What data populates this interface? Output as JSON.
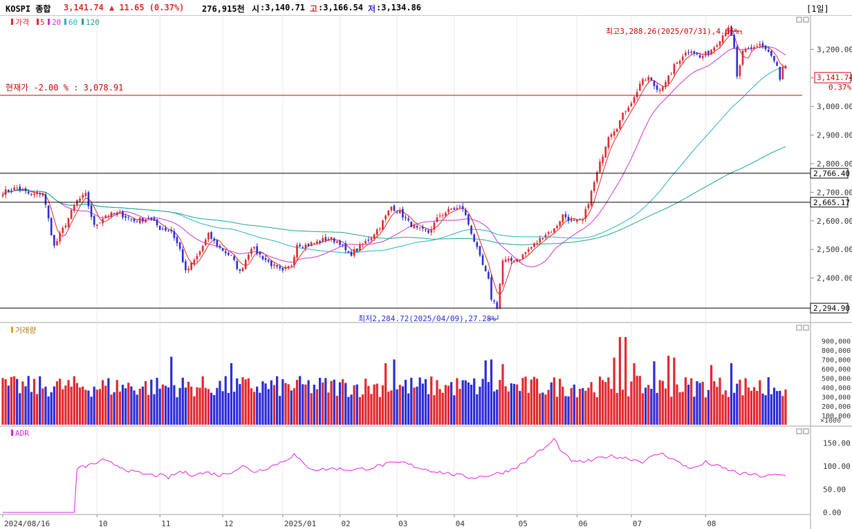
{
  "header": {
    "name": "KOSPI 종합",
    "price": "3,141.74",
    "change": "▲ 11.65 (0.37%)",
    "volume": "276,915천",
    "open_label": "시",
    "open": ":3,140.71",
    "high_label": "고",
    "high": ":3,166.54",
    "low_label": "저",
    "low": ":3,134.86",
    "period": "[1일]"
  },
  "legend": {
    "price": "가격",
    "ma5": "5",
    "ma20": "20",
    "ma60": "60",
    "ma120": "120",
    "volume": "거래량",
    "adr": "ADR"
  },
  "colors": {
    "up": "#e0282e",
    "down": "#2b2bd6",
    "ma5": "#d82828",
    "ma20": "#cc33cc",
    "ma60": "#20b0c8",
    "ma120": "#1aa58a",
    "adr": "#dd22dd",
    "hline": "#000000",
    "current": "#cc0000"
  },
  "annotations": {
    "max": "최고3,288.26(2025/07/31),4.66%",
    "min": "최저2,284.72(2025/04/09),27.28%",
    "current": "현재가 -2.00 % : 3,078.91",
    "last_price": "3,141.74",
    "last_pct": "0.37%"
  },
  "hlines": [
    {
      "label": "2,766.40",
      "value": 2766.4
    },
    {
      "label": "2,665.17",
      "value": 2665.17
    },
    {
      "label": "2,294.90",
      "value": 2294.9
    }
  ],
  "chart_data": [
    {
      "type": "candlestick",
      "title": "KOSPI 종합",
      "ylim": [
        2270,
        3310
      ],
      "yticks": [
        2400,
        2500,
        2600,
        2700,
        2800,
        2900,
        3000,
        3100,
        3200
      ],
      "ytick_labels": [
        "2,400.00",
        "2,500.00",
        "2,600.00",
        "2,700.00",
        "2,800.00",
        "2,900.00",
        "3,000.00",
        "3,100.00",
        "3,200.00"
      ],
      "x_labels": [
        "2024/08/16",
        "10",
        "11",
        "12",
        "2025/01",
        "02",
        "03",
        "04",
        "05",
        "06",
        "07",
        "08"
      ],
      "anchors": [
        [
          0,
          2700
        ],
        [
          5,
          2715
        ],
        [
          10,
          2690
        ],
        [
          14,
          2700
        ],
        [
          18,
          2510
        ],
        [
          22,
          2590
        ],
        [
          26,
          2670
        ],
        [
          29,
          2690
        ],
        [
          32,
          2580
        ],
        [
          36,
          2620
        ],
        [
          41,
          2625
        ],
        [
          46,
          2600
        ],
        [
          51,
          2610
        ],
        [
          55,
          2575
        ],
        [
          59,
          2565
        ],
        [
          62,
          2500
        ],
        [
          64,
          2420
        ],
        [
          68,
          2475
        ],
        [
          72,
          2550
        ],
        [
          76,
          2505
        ],
        [
          80,
          2475
        ],
        [
          83,
          2420
        ],
        [
          87,
          2510
        ],
        [
          90,
          2480
        ],
        [
          95,
          2440
        ],
        [
          98,
          2420
        ],
        [
          101,
          2445
        ],
        [
          103,
          2520
        ],
        [
          106,
          2515
        ],
        [
          110,
          2525
        ],
        [
          114,
          2540
        ],
        [
          118,
          2525
        ],
        [
          121,
          2480
        ],
        [
          124,
          2500
        ],
        [
          128,
          2535
        ],
        [
          132,
          2580
        ],
        [
          136,
          2650
        ],
        [
          139,
          2630
        ],
        [
          142,
          2595
        ],
        [
          145,
          2570
        ],
        [
          149,
          2560
        ],
        [
          153,
          2620
        ],
        [
          157,
          2640
        ],
        [
          161,
          2645
        ],
        [
          164,
          2560
        ],
        [
          167,
          2470
        ],
        [
          170,
          2390
        ],
        [
          171,
          2330
        ],
        [
          173,
          2300
        ],
        [
          175,
          2460
        ],
        [
          178,
          2460
        ],
        [
          181,
          2470
        ],
        [
          184,
          2500
        ],
        [
          187,
          2525
        ],
        [
          190,
          2555
        ],
        [
          193,
          2570
        ],
        [
          196,
          2620
        ],
        [
          200,
          2595
        ],
        [
          203,
          2600
        ],
        [
          206,
          2700
        ],
        [
          209,
          2800
        ],
        [
          212,
          2900
        ],
        [
          215,
          2930
        ],
        [
          218,
          2990
        ],
        [
          221,
          3030
        ],
        [
          223,
          3080
        ],
        [
          226,
          3100
        ],
        [
          229,
          3060
        ],
        [
          232,
          3080
        ],
        [
          235,
          3140
        ],
        [
          238,
          3180
        ],
        [
          241,
          3200
        ],
        [
          244,
          3170
        ],
        [
          247,
          3190
        ],
        [
          249,
          3210
        ],
        [
          252,
          3250
        ],
        [
          254,
          3280
        ],
        [
          256,
          3200
        ],
        [
          257,
          3100
        ],
        [
          259,
          3190
        ],
        [
          262,
          3200
        ],
        [
          265,
          3220
        ],
        [
          268,
          3190
        ],
        [
          271,
          3140
        ],
        [
          272,
          3090
        ],
        [
          273,
          3130
        ],
        [
          274,
          3141.74
        ]
      ],
      "count": 275
    },
    {
      "type": "bar",
      "title": "거래량",
      "ylim": [
        0,
        1000000
      ],
      "yticks": [
        100000,
        200000,
        300000,
        400000,
        500000,
        600000,
        700000,
        800000,
        900000
      ],
      "ytick_labels": [
        "100,000",
        "200,000",
        "300,000",
        "400,000",
        "500,000",
        "600,000",
        "700,000",
        "800,000",
        "900,000"
      ],
      "unit": "×1000",
      "base_level": 420000,
      "spikes": [
        [
          59,
          730000
        ],
        [
          80,
          660000
        ],
        [
          134,
          660000
        ],
        [
          137,
          700000
        ],
        [
          169,
          690000
        ],
        [
          171,
          700000
        ],
        [
          175,
          650000
        ],
        [
          214,
          720000
        ],
        [
          216,
          940000
        ],
        [
          218,
          940000
        ],
        [
          221,
          660000
        ],
        [
          228,
          680000
        ],
        [
          233,
          740000
        ],
        [
          235,
          720000
        ],
        [
          248,
          640000
        ],
        [
          255,
          660000
        ],
        [
          268,
          510000
        ]
      ]
    },
    {
      "type": "line",
      "title": "ADR",
      "ylim": [
        0,
        170
      ],
      "yticks": [
        0,
        50,
        100,
        150
      ],
      "ytick_labels": [
        "0.00",
        "50.00",
        "100.00",
        "150.00"
      ],
      "anchors": [
        [
          0,
          0
        ],
        [
          25,
          0
        ],
        [
          26,
          95
        ],
        [
          28,
          98
        ],
        [
          32,
          105
        ],
        [
          35,
          112
        ],
        [
          40,
          102
        ],
        [
          45,
          88
        ],
        [
          50,
          82
        ],
        [
          55,
          80
        ],
        [
          58,
          75
        ],
        [
          62,
          88
        ],
        [
          66,
          82
        ],
        [
          72,
          86
        ],
        [
          76,
          80
        ],
        [
          80,
          88
        ],
        [
          84,
          100
        ],
        [
          88,
          88
        ],
        [
          92,
          95
        ],
        [
          98,
          110
        ],
        [
          102,
          125
        ],
        [
          106,
          100
        ],
        [
          110,
          92
        ],
        [
          116,
          95
        ],
        [
          122,
          92
        ],
        [
          128,
          95
        ],
        [
          134,
          104
        ],
        [
          140,
          108
        ],
        [
          146,
          96
        ],
        [
          152,
          88
        ],
        [
          158,
          82
        ],
        [
          164,
          75
        ],
        [
          170,
          80
        ],
        [
          176,
          88
        ],
        [
          182,
          105
        ],
        [
          186,
          125
        ],
        [
          190,
          140
        ],
        [
          193,
          158
        ],
        [
          196,
          128
        ],
        [
          200,
          108
        ],
        [
          206,
          112
        ],
        [
          212,
          122
        ],
        [
          218,
          118
        ],
        [
          224,
          110
        ],
        [
          230,
          128
        ],
        [
          234,
          118
        ],
        [
          238,
          102
        ],
        [
          242,
          95
        ],
        [
          246,
          108
        ],
        [
          250,
          100
        ],
        [
          254,
          92
        ],
        [
          258,
          84
        ],
        [
          262,
          82
        ],
        [
          266,
          78
        ],
        [
          270,
          80
        ],
        [
          274,
          80
        ]
      ],
      "count": 275
    }
  ]
}
